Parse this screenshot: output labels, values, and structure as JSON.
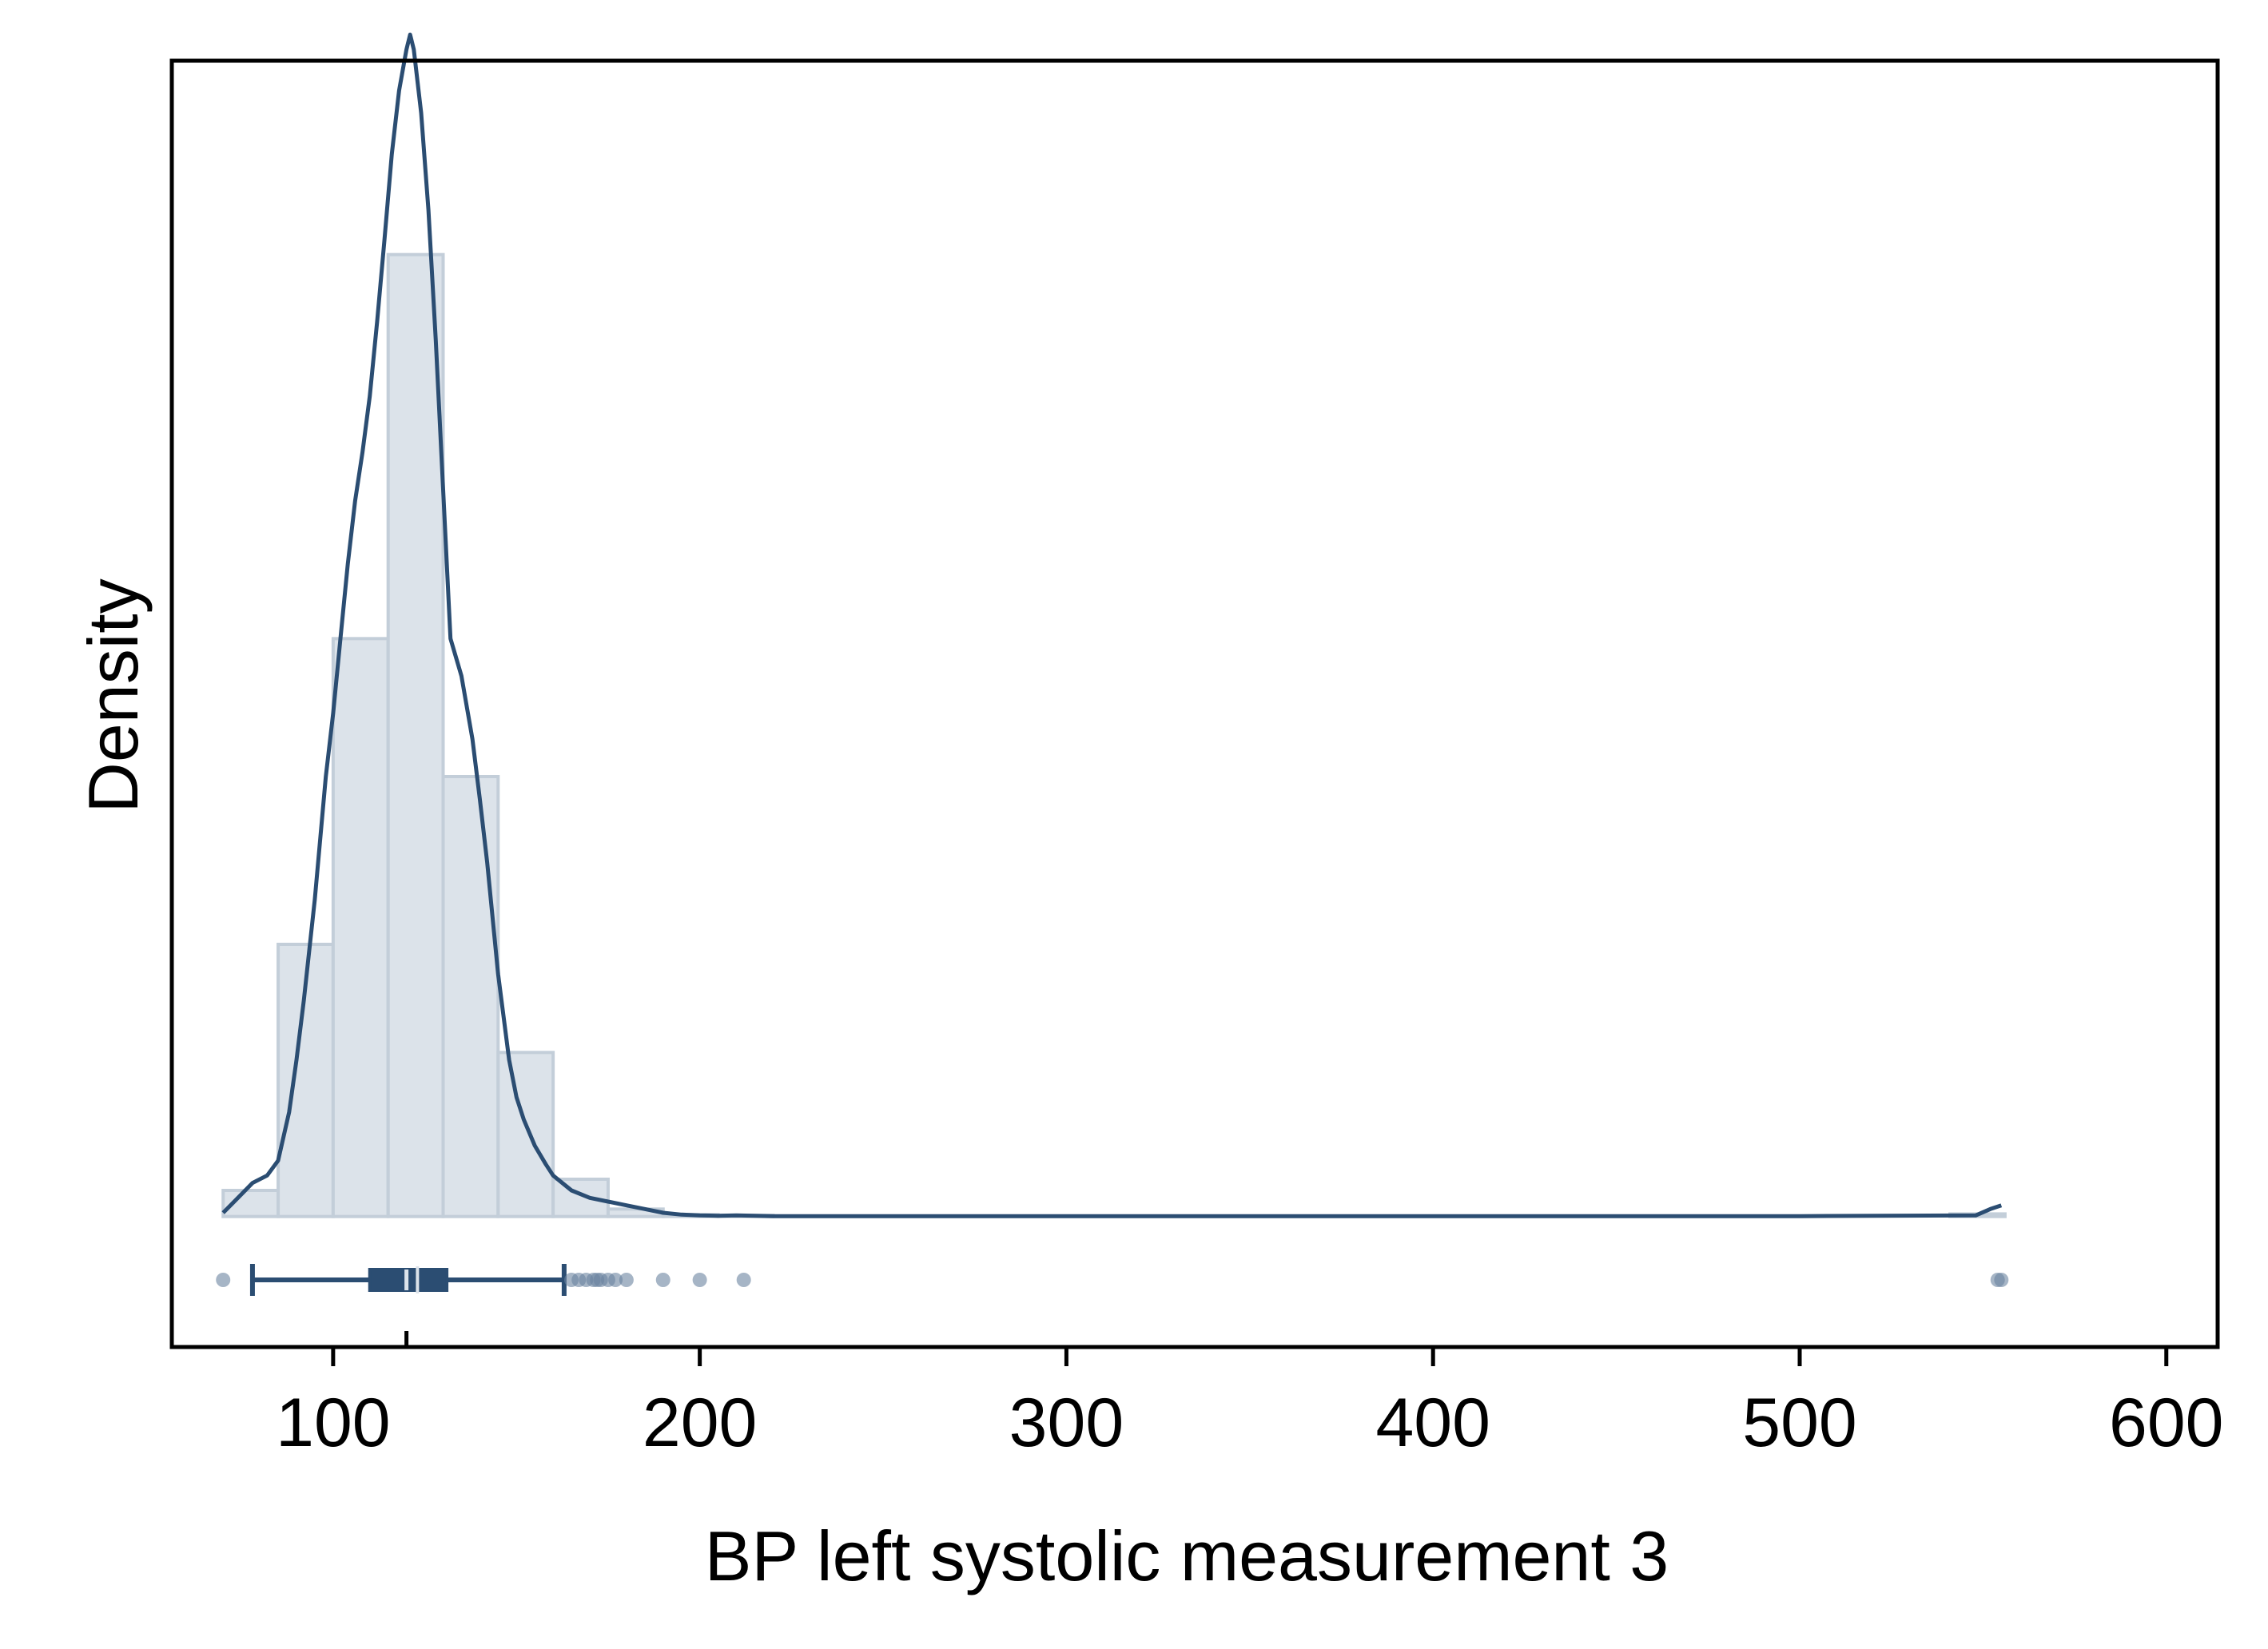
{
  "chart_data": {
    "type": "histogram",
    "xlabel": "BP left systolic measurement 3",
    "ylabel": "Density",
    "xlim": [
      56,
      614
    ],
    "ylim": [
      -0.0035,
      0.031
    ],
    "x_ticks": [
      100,
      200,
      300,
      400,
      500,
      600
    ],
    "y_ticks_shown": false,
    "grid": false,
    "legend": "none",
    "colors": {
      "bar_fill": "#dce3ea",
      "bar_edge": "#c3ced9",
      "line": "#2b4d72",
      "box": "#2b4d72",
      "outlier": "#6b84a0"
    },
    "histogram": {
      "bin_width": 15,
      "bins": [
        {
          "x0": 70,
          "x1": 85,
          "density": 0.0007
        },
        {
          "x0": 85,
          "x1": 100,
          "density": 0.0073
        },
        {
          "x0": 100,
          "x1": 115,
          "density": 0.0155
        },
        {
          "x0": 115,
          "x1": 130,
          "density": 0.0258
        },
        {
          "x0": 130,
          "x1": 145,
          "density": 0.0118
        },
        {
          "x0": 145,
          "x1": 160,
          "density": 0.0044
        },
        {
          "x0": 160,
          "x1": 175,
          "density": 0.001
        },
        {
          "x0": 175,
          "x1": 190,
          "density": 0.0002
        },
        {
          "x0": 190,
          "x1": 205,
          "density": 5e-05
        },
        {
          "x0": 205,
          "x1": 220,
          "density": 3e-05
        },
        {
          "x0": 541,
          "x1": 556,
          "density": 7e-05
        }
      ]
    },
    "kde": {
      "x": [
        70,
        72,
        75,
        78,
        82,
        85,
        88,
        90,
        92,
        95,
        98,
        100,
        102,
        104,
        106,
        108,
        110,
        112,
        114,
        116,
        118,
        120,
        121,
        122,
        124,
        126,
        128,
        130,
        132,
        135,
        138,
        140,
        142,
        145,
        148,
        150,
        152,
        155,
        158,
        160,
        165,
        170,
        175,
        180,
        185,
        190,
        195,
        200,
        205,
        210,
        215,
        220,
        300,
        400,
        500,
        548,
        552,
        555
      ],
      "y": [
        0.0001,
        0.0003,
        0.0006,
        0.0009,
        0.0011,
        0.0015,
        0.0028,
        0.0042,
        0.0058,
        0.0085,
        0.0118,
        0.0135,
        0.0155,
        0.0175,
        0.0192,
        0.0205,
        0.022,
        0.024,
        0.0262,
        0.0285,
        0.0302,
        0.0313,
        0.0317,
        0.0313,
        0.0296,
        0.027,
        0.0235,
        0.0195,
        0.0155,
        0.0145,
        0.0128,
        0.0112,
        0.0095,
        0.0065,
        0.0042,
        0.0032,
        0.0026,
        0.0019,
        0.0014,
        0.0011,
        0.0007,
        0.0005,
        0.0004,
        0.0003,
        0.0002,
        0.0001,
        5e-05,
        3e-05,
        2e-05,
        3e-05,
        2e-05,
        1e-05,
        1e-05,
        1e-05,
        1e-05,
        3e-05,
        0.0002,
        0.0003
      ]
    },
    "boxplot": {
      "whisker_low": 78,
      "q1": 110,
      "median": 120,
      "mean": 123,
      "q3": 131,
      "whisker_high": 163,
      "outliers": [
        70,
        165,
        167,
        169,
        171,
        172,
        173,
        175,
        177,
        180,
        190,
        200,
        212,
        554,
        555
      ]
    }
  }
}
